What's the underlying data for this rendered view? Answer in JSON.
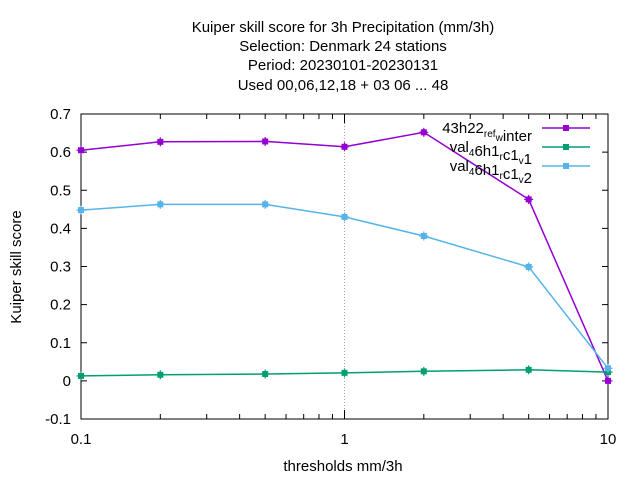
{
  "chart_data": {
    "type": "line",
    "title_lines": [
      "Kuiper skill score  for 3h Precipitation (mm/3h)",
      "Selection: Denmark      24 stations",
      "Period: 20230101-20230131",
      "Used  00,06,12,18  + 03 06 ... 48"
    ],
    "xlabel": "thresholds mm/3h",
    "ylabel": "Kuiper skill score",
    "xscale": "log",
    "xlim": [
      0.1,
      10
    ],
    "ylim": [
      -0.1,
      0.7
    ],
    "xticks": [
      0.1,
      1,
      10
    ],
    "xtick_labels": [
      "0.1",
      "1",
      "10"
    ],
    "yticks": [
      -0.1,
      0,
      0.1,
      0.2,
      0.3,
      0.4,
      0.5,
      0.6,
      0.7
    ],
    "ytick_labels": [
      "-0.1",
      "0",
      "0.1",
      "0.2",
      "0.3",
      "0.4",
      "0.5",
      "0.6",
      "0.7"
    ],
    "legend_position": "top-right",
    "series": [
      {
        "name": "43h22_ref_winter",
        "legend_parts": [
          [
            "43h22",
            false
          ],
          [
            "ref",
            true
          ],
          [
            "w",
            true
          ],
          [
            "inter",
            false
          ]
        ],
        "color": "#9400d3",
        "x": [
          0.1,
          0.2,
          0.5,
          1,
          2,
          5,
          10
        ],
        "y": [
          0.605,
          0.627,
          0.628,
          0.614,
          0.652,
          0.476,
          0.0
        ]
      },
      {
        "name": "val_46h1_rc1_v1",
        "legend_parts": [
          [
            "val",
            false
          ],
          [
            "4",
            true
          ],
          [
            "6h1",
            false
          ],
          [
            "r",
            true
          ],
          [
            "c1",
            false
          ],
          [
            "v",
            true
          ],
          [
            "1",
            false
          ]
        ],
        "color": "#009e73",
        "x": [
          0.1,
          0.2,
          0.5,
          1,
          2,
          5,
          10
        ],
        "y": [
          0.013,
          0.016,
          0.018,
          0.021,
          0.025,
          0.029,
          0.023
        ]
      },
      {
        "name": "val_46h1_rc1_v2",
        "legend_parts": [
          [
            "val",
            false
          ],
          [
            "4",
            true
          ],
          [
            "6h1",
            false
          ],
          [
            "r",
            true
          ],
          [
            "c1",
            false
          ],
          [
            "v",
            true
          ],
          [
            "2",
            false
          ]
        ],
        "color": "#56b4e9",
        "x": [
          0.1,
          0.2,
          0.5,
          1,
          2,
          5,
          10
        ],
        "y": [
          0.448,
          0.463,
          0.463,
          0.43,
          0.38,
          0.299,
          0.033
        ]
      }
    ]
  }
}
